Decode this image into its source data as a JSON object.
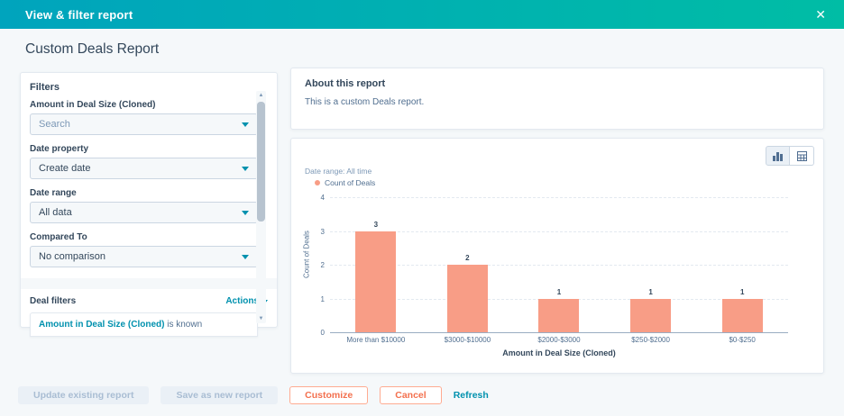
{
  "modal": {
    "title": "View & filter report",
    "close_glyph": "✕"
  },
  "page": {
    "title": "Custom Deals Report"
  },
  "filters": {
    "heading": "Filters",
    "groups": [
      {
        "label": "Amount in Deal Size (Cloned)",
        "value": "Search",
        "muted": true
      },
      {
        "label": "Date property",
        "value": "Create date",
        "muted": false
      },
      {
        "label": "Date range",
        "value": "All data",
        "muted": false
      },
      {
        "label": "Compared To",
        "value": "No comparison",
        "muted": false
      }
    ],
    "deal_filters": {
      "label": "Deal filters",
      "actions_label": "Actions",
      "items": [
        {
          "property": "Amount in Deal Size (Cloned)",
          "condition": " is known"
        }
      ]
    }
  },
  "about": {
    "heading": "About this report",
    "body": "This is a custom Deals report."
  },
  "report_view": {
    "date_range_note": "Date range: All time",
    "legend": [
      {
        "label": "Count of Deals",
        "color": "#f89d86"
      }
    ],
    "toolbar": [
      {
        "name": "chart-view-button"
      },
      {
        "name": "table-view-button"
      }
    ]
  },
  "chart_data": {
    "type": "bar",
    "title": "",
    "categories": [
      "More than $10000",
      "$3000-$10000",
      "$2000-$3000",
      "$250-$2000",
      "$0-$250"
    ],
    "values": [
      3,
      2,
      1,
      1,
      1
    ],
    "series_name": "Count of Deals",
    "xlabel": "Amount in Deal Size (Cloned)",
    "ylabel": "Count of Deals",
    "ylim": [
      0,
      4
    ],
    "yticks": [
      0,
      1,
      2,
      3,
      4
    ],
    "bar_color": "#f89d86",
    "grid": true,
    "legend_position": "top-left"
  },
  "footer": {
    "update_label": "Update existing report",
    "save_label": "Save as new report",
    "customize_label": "Customize",
    "cancel_label": "Cancel",
    "refresh_label": "Refresh"
  },
  "colors": {
    "header_gradient_start": "#00a4bd",
    "header_gradient_end": "#00bda5",
    "link": "#0091ae",
    "bar": "#f89d86",
    "orange_button": "#f3704e",
    "page_background": "#f5f8fa",
    "heading_text": "#33475b",
    "muted_text": "#516f90"
  }
}
